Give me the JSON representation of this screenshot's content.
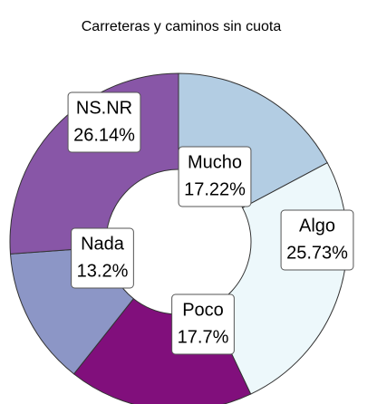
{
  "chart_data": {
    "type": "donut",
    "title": "Carreteras y caminos sin cuota",
    "categories": [
      "Mucho",
      "Algo",
      "Poco",
      "Nada",
      "NS.NR"
    ],
    "values": [
      17.22,
      25.73,
      17.7,
      13.2,
      26.14
    ],
    "value_labels": [
      "17.22%",
      "25.73%",
      "17.7%",
      "13.2%",
      "26.14%"
    ],
    "colors": [
      "#b3cde3",
      "#edf8fb",
      "#810f7c",
      "#8c96c6",
      "#8856a7"
    ]
  }
}
